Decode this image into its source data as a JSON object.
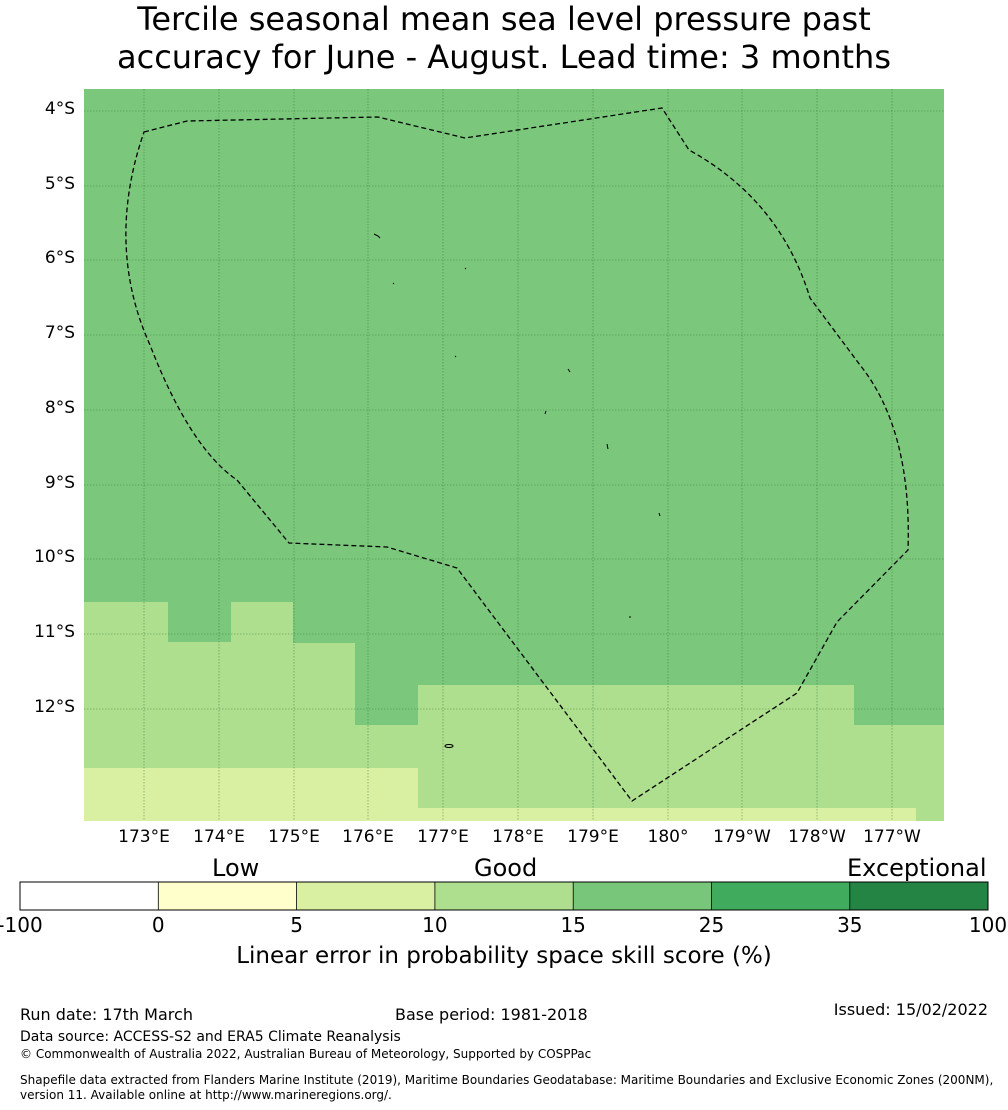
{
  "title_line1": "Tercile seasonal mean sea level pressure past",
  "title_line2": "accuracy for June - August. Lead time: 3 months",
  "map": {
    "lat_labels": [
      "4°S",
      "5°S",
      "6°S",
      "7°S",
      "8°S",
      "9°S",
      "10°S",
      "11°S",
      "12°S"
    ],
    "lon_labels": [
      "173°E",
      "174°E",
      "175°E",
      "176°E",
      "177°E",
      "178°E",
      "179°E",
      "180°",
      "179°W",
      "178°W",
      "177°W"
    ],
    "colors": {
      "c15_25": "#7bc87c",
      "c10_15": "#addf8e",
      "c5_10": "#d9f0a3",
      "eez_line": "#000000",
      "grid": "#2f6b2f"
    }
  },
  "colorbar": {
    "category_low": "Low",
    "category_good": "Good",
    "category_exceptional": "Exceptional",
    "ticks": [
      "-100",
      "0",
      "5",
      "10",
      "15",
      "25",
      "35",
      "100"
    ],
    "colors": [
      "#ffffff",
      "#ffffcc",
      "#d9f0a3",
      "#addf8e",
      "#78c679",
      "#41ab5d",
      "#238443"
    ],
    "label": "Linear error in probability space skill score (%)"
  },
  "footer": {
    "run_date": "Run date: 17th March",
    "base_period": "Base period: 1981-2018",
    "issued": "Issued: 15/02/2022",
    "data_source": "Data source: ACCESS-S2 and ERA5 Climate Reanalysis",
    "copyright": "© Commonwealth of Australia 2022, Australian Bureau of Meteorology, Supported by COSPPac",
    "shapefile_line1": "Shapefile data extracted from Flanders Marine Institute (2019), Maritime Boundaries Geodatabase: Maritime Boundaries and Exclusive Economic Zones (200NM),",
    "shapefile_line2": "version 11. Available online at http://www.marineregions.org/."
  }
}
